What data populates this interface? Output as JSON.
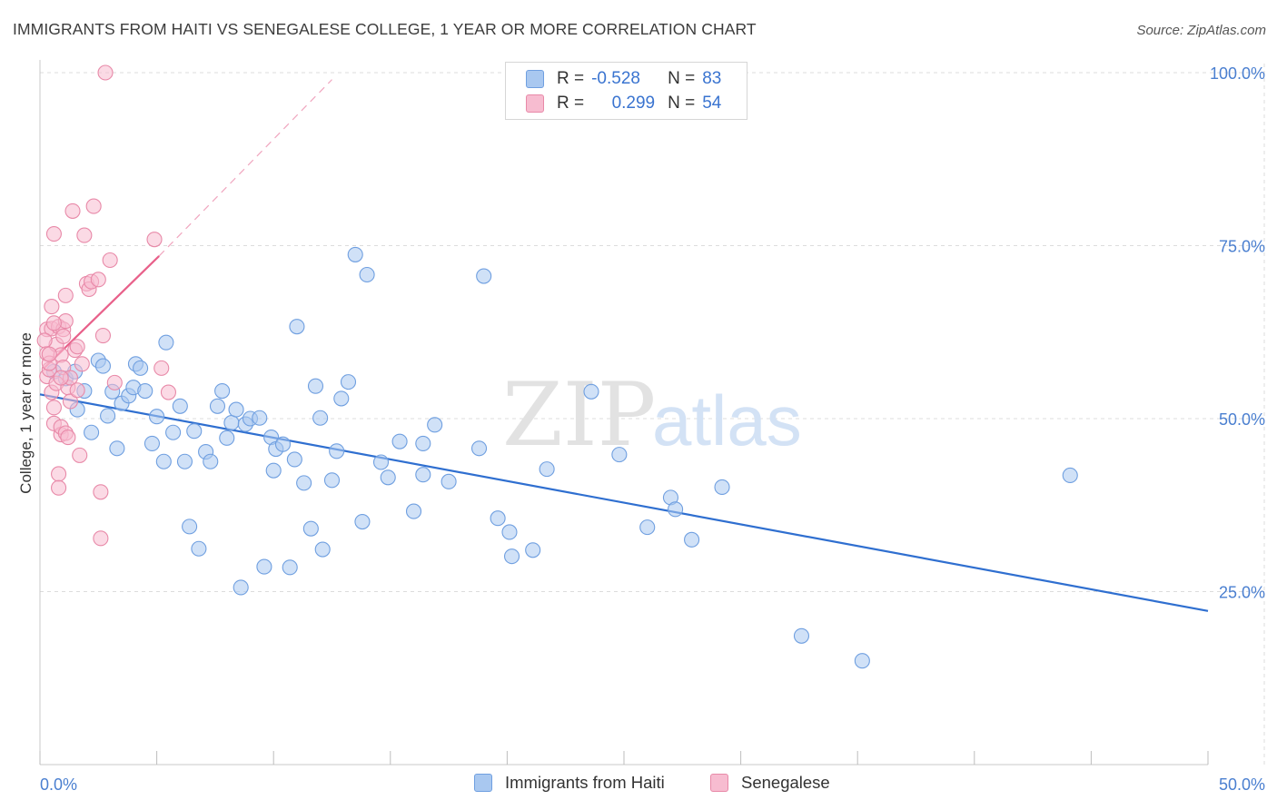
{
  "title": "IMMIGRANTS FROM HAITI VS SENEGALESE COLLEGE, 1 YEAR OR MORE CORRELATION CHART",
  "source": "Source: ZipAtlas.com",
  "watermark": {
    "zip": "ZIP",
    "atlas": "atlas"
  },
  "legend": {
    "r_label": "R =",
    "n_label": "N =",
    "rows": [
      {
        "r": "-0.528",
        "n": "83",
        "color": "#a9c8f0",
        "border": "#6f9fe0"
      },
      {
        "r": "0.299",
        "n": "54",
        "color": "#f7bcd0",
        "border": "#e889a8"
      }
    ]
  },
  "colors": {
    "haiti_fill": "#a9c8f0",
    "haiti_stroke": "#6f9fe0",
    "haiti_line": "#2f6fd0",
    "sen_fill": "#f7bcd0",
    "sen_stroke": "#e889a8",
    "sen_line": "#e8608a"
  },
  "chart_data": {
    "type": "scatter",
    "xlabel": "",
    "ylabel": "College, 1 year or more",
    "xlim": [
      0,
      50
    ],
    "ylim": [
      0,
      105
    ],
    "x_tick_labels": [
      "0.0%",
      "50.0%"
    ],
    "y_ticks": [
      25,
      50,
      75,
      100
    ],
    "y_tick_labels": [
      "25.0%",
      "50.0%",
      "75.0%",
      "100.0%"
    ],
    "grid": true,
    "series": [
      {
        "name": "Immigrants from Haiti",
        "trend": {
          "x": [
            0,
            50
          ],
          "y": [
            53.5,
            22.2
          ]
        },
        "points": [
          [
            0.6,
            56.8
          ],
          [
            1.1,
            55.8
          ],
          [
            1.5,
            56.8
          ],
          [
            1.6,
            51.3
          ],
          [
            1.9,
            54
          ],
          [
            2.2,
            48
          ],
          [
            2.5,
            58.4
          ],
          [
            2.7,
            57.6
          ],
          [
            2.9,
            50.4
          ],
          [
            3.1,
            53.9
          ],
          [
            3.3,
            45.7
          ],
          [
            3.5,
            52.2
          ],
          [
            3.8,
            53.3
          ],
          [
            4.0,
            54.5
          ],
          [
            4.1,
            57.9
          ],
          [
            4.3,
            57.3
          ],
          [
            4.5,
            54
          ],
          [
            4.8,
            46.4
          ],
          [
            5.0,
            50.3
          ],
          [
            5.3,
            43.8
          ],
          [
            5.4,
            61
          ],
          [
            5.7,
            48
          ],
          [
            6.0,
            51.8
          ],
          [
            6.2,
            43.8
          ],
          [
            6.4,
            34.4
          ],
          [
            6.6,
            48.2
          ],
          [
            6.8,
            31.2
          ],
          [
            7.1,
            45.2
          ],
          [
            7.3,
            43.8
          ],
          [
            7.6,
            51.8
          ],
          [
            7.8,
            54
          ],
          [
            8.0,
            47.2
          ],
          [
            8.2,
            49.4
          ],
          [
            8.4,
            51.3
          ],
          [
            8.6,
            25.6
          ],
          [
            8.8,
            49.2
          ],
          [
            9.0,
            50
          ],
          [
            9.4,
            50.1
          ],
          [
            9.6,
            28.6
          ],
          [
            9.9,
            47.3
          ],
          [
            10.0,
            42.5
          ],
          [
            10.1,
            45.6
          ],
          [
            10.4,
            46.3
          ],
          [
            10.7,
            28.5
          ],
          [
            10.9,
            44.1
          ],
          [
            11.0,
            63.3
          ],
          [
            11.3,
            40.7
          ],
          [
            11.6,
            34.1
          ],
          [
            11.8,
            54.7
          ],
          [
            12.0,
            50.1
          ],
          [
            12.1,
            31.1
          ],
          [
            12.5,
            41.1
          ],
          [
            12.7,
            45.3
          ],
          [
            12.9,
            52.9
          ],
          [
            13.2,
            55.3
          ],
          [
            13.5,
            73.7
          ],
          [
            13.8,
            35.1
          ],
          [
            14.0,
            70.8
          ],
          [
            14.6,
            43.7
          ],
          [
            14.9,
            41.5
          ],
          [
            15.4,
            46.7
          ],
          [
            16.0,
            36.6
          ],
          [
            16.4,
            46.4
          ],
          [
            16.9,
            49.1
          ],
          [
            17.5,
            40.9
          ],
          [
            18.8,
            45.7
          ],
          [
            19.0,
            70.6
          ],
          [
            19.6,
            35.6
          ],
          [
            20.1,
            33.6
          ],
          [
            20.2,
            30.1
          ],
          [
            21.7,
            42.7
          ],
          [
            23.6,
            53.9
          ],
          [
            26.0,
            34.3
          ],
          [
            27.0,
            38.6
          ],
          [
            27.2,
            36.9
          ],
          [
            27.9,
            32.5
          ],
          [
            29.2,
            40.1
          ],
          [
            32.6,
            18.6
          ],
          [
            35.2,
            15
          ],
          [
            44.1,
            41.8
          ],
          [
            21.1,
            31
          ],
          [
            16.4,
            41.9
          ],
          [
            24.8,
            44.8
          ]
        ]
      },
      {
        "name": "Senegalese",
        "trend": {
          "x": [
            0.15,
            5.1
          ],
          "y": [
            57.2,
            73.5
          ]
        },
        "trend_ext": {
          "x": [
            5.1,
            12.5
          ],
          "y": [
            73.5,
            99
          ]
        },
        "points": [
          [
            0.3,
            62.9
          ],
          [
            0.3,
            56.1
          ],
          [
            0.3,
            59.4
          ],
          [
            0.4,
            57.1
          ],
          [
            0.4,
            58
          ],
          [
            0.5,
            53.8
          ],
          [
            0.5,
            66.2
          ],
          [
            0.5,
            63
          ],
          [
            0.6,
            49.3
          ],
          [
            0.6,
            51.6
          ],
          [
            0.6,
            76.7
          ],
          [
            0.7,
            60.7
          ],
          [
            0.7,
            55.1
          ],
          [
            0.8,
            63.3
          ],
          [
            0.8,
            42
          ],
          [
            0.8,
            40
          ],
          [
            0.9,
            47.7
          ],
          [
            0.9,
            48.8
          ],
          [
            0.9,
            59.2
          ],
          [
            1.0,
            57.4
          ],
          [
            1.0,
            62.9
          ],
          [
            1.1,
            64.1
          ],
          [
            1.1,
            47.9
          ],
          [
            1.1,
            67.8
          ],
          [
            1.2,
            54.5
          ],
          [
            1.3,
            52.5
          ],
          [
            1.3,
            55.9
          ],
          [
            1.4,
            80
          ],
          [
            1.5,
            59.9
          ],
          [
            1.6,
            60.4
          ],
          [
            1.6,
            54.1
          ],
          [
            1.7,
            44.7
          ],
          [
            1.8,
            57.9
          ],
          [
            1.9,
            76.5
          ],
          [
            2.0,
            69.5
          ],
          [
            2.1,
            68.7
          ],
          [
            2.2,
            69.8
          ],
          [
            2.3,
            80.7
          ],
          [
            2.5,
            70.1
          ],
          [
            2.6,
            39.4
          ],
          [
            2.6,
            32.7
          ],
          [
            2.7,
            62
          ],
          [
            3.0,
            72.9
          ],
          [
            3.2,
            55.2
          ],
          [
            4.9,
            75.9
          ],
          [
            5.2,
            57.3
          ],
          [
            5.5,
            53.8
          ],
          [
            2.8,
            100
          ],
          [
            0.2,
            61.3
          ],
          [
            0.4,
            59.3
          ],
          [
            0.9,
            55.9
          ],
          [
            1.2,
            47.3
          ],
          [
            0.6,
            63.8
          ],
          [
            1.0,
            61.9
          ]
        ]
      }
    ]
  },
  "bottom_legend": [
    "Immigrants from Haiti",
    "Senegalese"
  ]
}
